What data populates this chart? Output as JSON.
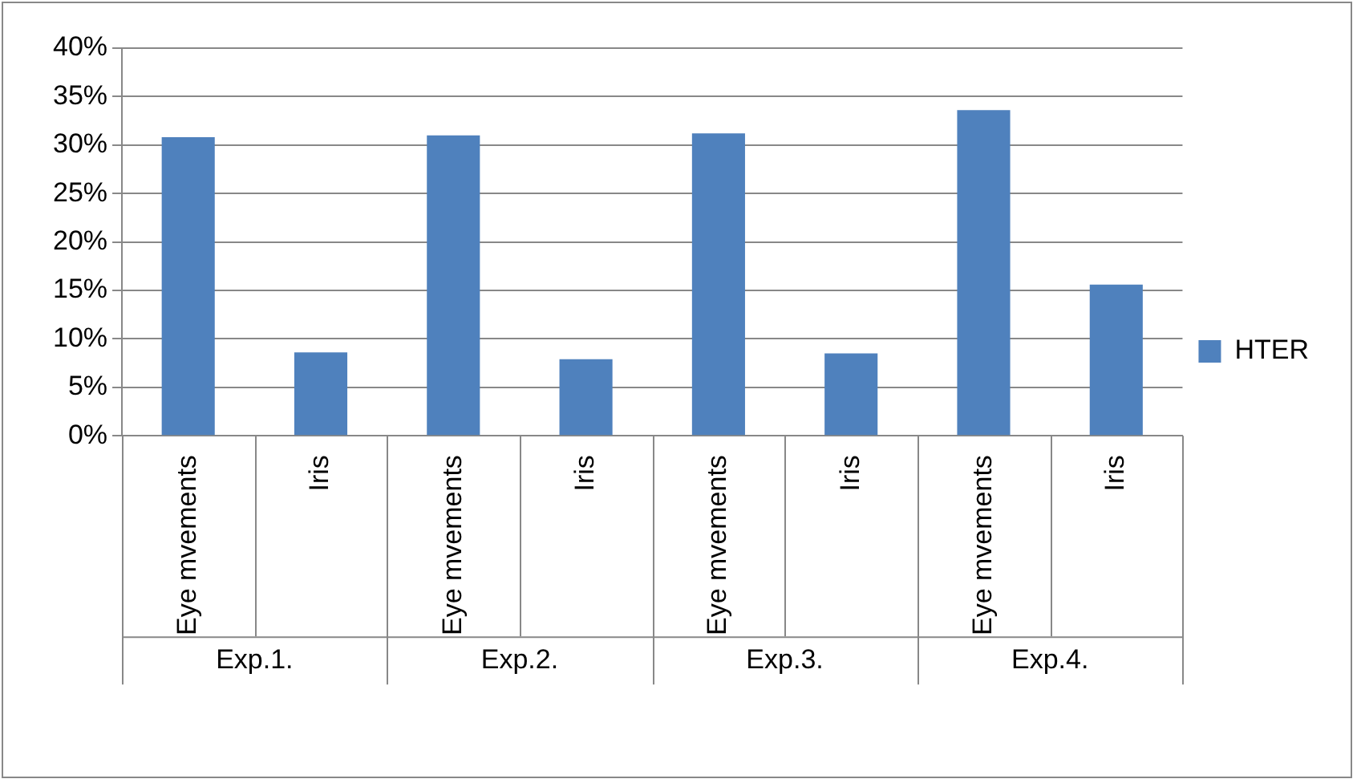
{
  "chart_data": {
    "type": "bar",
    "categories": [
      "Eye mvements",
      "Iris",
      "Eye mvements",
      "Iris",
      "Eye mvements",
      "Iris",
      "Eye mvements",
      "Iris"
    ],
    "series": [
      {
        "name": "HTER",
        "color": "#4f81bd",
        "values": [
          30.8,
          8.6,
          31.0,
          7.9,
          31.2,
          8.5,
          33.6,
          15.6
        ]
      }
    ],
    "ylim": [
      0,
      40
    ],
    "yticks": [
      {
        "value": 0,
        "label": "0%"
      },
      {
        "value": 5,
        "label": "5%"
      },
      {
        "value": 10,
        "label": "10%"
      },
      {
        "value": 15,
        "label": "15%"
      },
      {
        "value": 20,
        "label": "20%"
      },
      {
        "value": 25,
        "label": "25%"
      },
      {
        "value": 30,
        "label": "30%"
      },
      {
        "value": 35,
        "label": "35%"
      },
      {
        "value": 40,
        "label": "40%"
      }
    ],
    "annotations": [
      "Exp.1.",
      "Exp.2.",
      "Exp.3.",
      "Exp.4."
    ],
    "grid": "y",
    "legend": "right"
  }
}
